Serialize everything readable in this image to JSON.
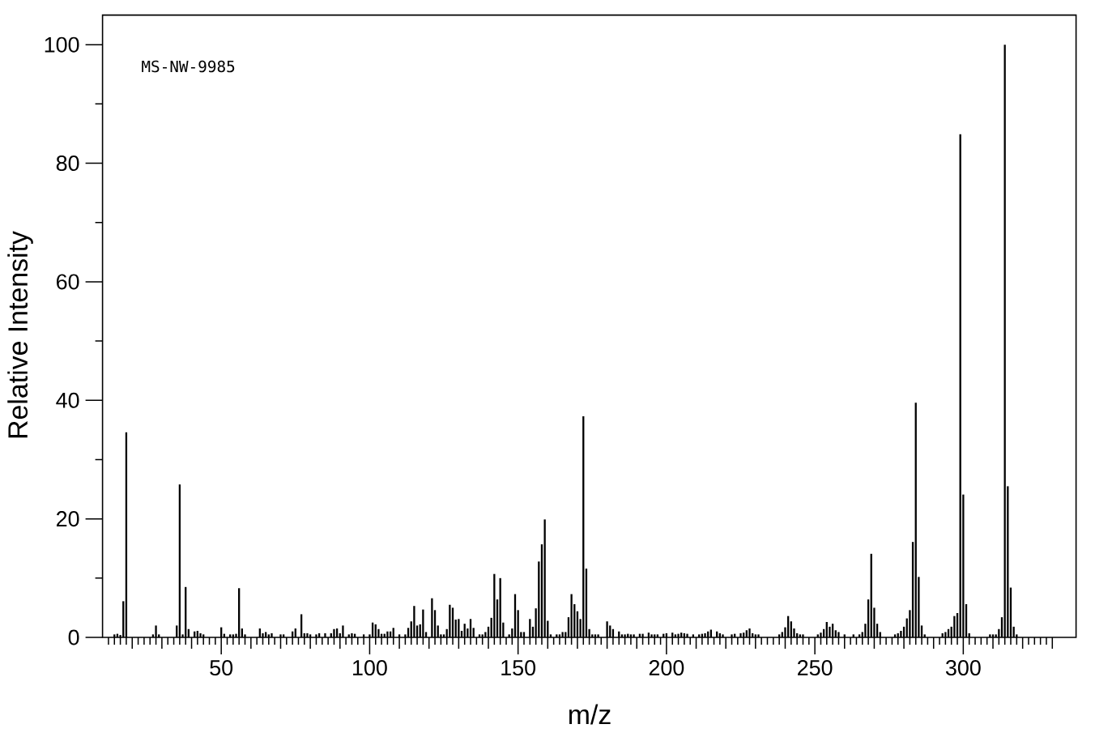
{
  "chart_data": {
    "type": "bar",
    "xlabel": "m/z",
    "ylabel": "Relative Intensity",
    "annotations": [
      "MS-NW-9985"
    ],
    "color": "#000000",
    "x": [
      14,
      15,
      16,
      17,
      18,
      27,
      28,
      29,
      35,
      36,
      37,
      38,
      39,
      41,
      42,
      43,
      44,
      50,
      51,
      53,
      54,
      55,
      56,
      57,
      58,
      63,
      64,
      65,
      66,
      67,
      70,
      71,
      74,
      75,
      77,
      78,
      79,
      80,
      82,
      83,
      85,
      87,
      88,
      89,
      90,
      91,
      93,
      94,
      95,
      98,
      100,
      101,
      102,
      103,
      104,
      105,
      106,
      107,
      108,
      110,
      112,
      113,
      114,
      115,
      116,
      117,
      118,
      119,
      121,
      122,
      123,
      124,
      125,
      126,
      127,
      128,
      129,
      130,
      131,
      132,
      133,
      134,
      135,
      137,
      138,
      139,
      140,
      141,
      142,
      143,
      144,
      145,
      147,
      148,
      149,
      150,
      151,
      152,
      154,
      155,
      156,
      157,
      158,
      159,
      160,
      161,
      163,
      164,
      165,
      166,
      167,
      168,
      169,
      170,
      171,
      172,
      173,
      174,
      175,
      176,
      177,
      180,
      181,
      182,
      184,
      185,
      186,
      187,
      188,
      189,
      191,
      192,
      194,
      195,
      196,
      197,
      199,
      200,
      202,
      203,
      204,
      205,
      206,
      207,
      209,
      211,
      212,
      213,
      214,
      215,
      217,
      218,
      219,
      222,
      223,
      225,
      226,
      227,
      228,
      229,
      230,
      231,
      238,
      239,
      240,
      241,
      242,
      243,
      244,
      245,
      246,
      251,
      252,
      253,
      254,
      255,
      256,
      257,
      258,
      260,
      263,
      265,
      266,
      267,
      268,
      269,
      270,
      271,
      272,
      277,
      278,
      279,
      280,
      281,
      282,
      283,
      284,
      285,
      286,
      287,
      293,
      294,
      295,
      296,
      297,
      298,
      299,
      300,
      301,
      302,
      309,
      310,
      311,
      312,
      313,
      314,
      315,
      316,
      317,
      318
    ],
    "values": [
      0.5,
      0.6,
      0.4,
      6.1,
      34.6,
      0.5,
      2.0,
      0.5,
      2.0,
      25.8,
      0.5,
      8.5,
      1.4,
      1.0,
      1.1,
      0.7,
      0.5,
      1.7,
      0.6,
      0.5,
      0.5,
      0.6,
      8.3,
      1.5,
      0.5,
      1.5,
      0.7,
      0.9,
      0.5,
      0.7,
      0.5,
      0.5,
      1.0,
      1.5,
      3.9,
      0.7,
      0.7,
      0.5,
      0.5,
      0.7,
      0.7,
      0.7,
      1.4,
      1.5,
      0.7,
      2.0,
      0.5,
      0.7,
      0.6,
      0.5,
      0.5,
      2.5,
      2.2,
      1.4,
      0.6,
      0.6,
      1.0,
      1.0,
      1.6,
      0.5,
      0.5,
      1.6,
      2.7,
      5.3,
      2.0,
      2.2,
      4.7,
      0.9,
      6.6,
      4.6,
      2.0,
      0.5,
      0.5,
      1.4,
      5.5,
      5.0,
      3.0,
      3.1,
      1.1,
      2.3,
      1.5,
      3.1,
      1.6,
      0.5,
      0.5,
      0.9,
      1.8,
      3.3,
      10.7,
      6.4,
      10.0,
      2.5,
      0.5,
      1.5,
      7.3,
      4.6,
      0.9,
      0.9,
      3.1,
      1.8,
      4.9,
      12.8,
      15.7,
      19.9,
      2.8,
      0.5,
      0.5,
      0.5,
      0.9,
      0.9,
      3.4,
      7.3,
      5.6,
      4.4,
      3.1,
      37.3,
      11.6,
      1.4,
      0.5,
      0.5,
      0.5,
      2.7,
      2.0,
      1.4,
      1.0,
      0.5,
      0.5,
      0.6,
      0.5,
      0.5,
      0.6,
      0.6,
      0.8,
      0.5,
      0.5,
      0.5,
      0.6,
      0.7,
      0.8,
      0.5,
      0.6,
      0.8,
      0.7,
      0.6,
      0.5,
      0.5,
      0.6,
      0.7,
      1.0,
      1.3,
      1.0,
      0.7,
      0.5,
      0.5,
      0.6,
      0.7,
      0.8,
      1.2,
      1.5,
      0.7,
      0.5,
      0.5,
      0.5,
      0.9,
      1.7,
      3.6,
      2.7,
      1.5,
      0.7,
      0.5,
      0.5,
      0.5,
      0.8,
      1.4,
      2.6,
      1.8,
      2.3,
      1.2,
      0.9,
      0.5,
      0.5,
      0.5,
      0.9,
      2.3,
      6.4,
      14.1,
      5.0,
      2.3,
      0.9,
      0.5,
      0.7,
      1.1,
      1.8,
      3.2,
      4.6,
      16.1,
      39.6,
      10.2,
      2.0,
      0.5,
      0.7,
      0.9,
      1.4,
      1.8,
      3.6,
      4.1,
      84.9,
      24.1,
      5.6,
      0.7,
      0.5,
      0.5,
      0.5,
      1.4,
      3.4,
      100,
      25.5,
      8.4,
      1.8,
      0.5
    ],
    "xlim": [
      10,
      338
    ],
    "ylim": [
      0,
      105
    ],
    "xticks": [
      {
        "value": 12,
        "label": null
      },
      {
        "value": 14,
        "label": null
      },
      {
        "value": 16,
        "label": null
      },
      {
        "value": 18,
        "label": null
      },
      {
        "value": 20,
        "label": null
      },
      {
        "value": 22,
        "label": null
      },
      {
        "value": 24,
        "label": null
      },
      {
        "value": 26,
        "label": null
      },
      {
        "value": 28,
        "label": null
      },
      {
        "value": 30,
        "label": null
      },
      {
        "value": 32,
        "label": null
      },
      {
        "value": 34,
        "label": null
      },
      {
        "value": 36,
        "label": null
      },
      {
        "value": 38,
        "label": null
      },
      {
        "value": 40,
        "label": null
      },
      {
        "value": 42,
        "label": null
      },
      {
        "value": 44,
        "label": null
      },
      {
        "value": 46,
        "label": null
      },
      {
        "value": 48,
        "label": null
      },
      50,
      {
        "value": 52,
        "label": null
      },
      {
        "value": 54,
        "label": null
      },
      {
        "value": 56,
        "label": null
      },
      {
        "value": 58,
        "label": null
      },
      {
        "value": 60,
        "label": null
      },
      {
        "value": 62,
        "label": null
      },
      {
        "value": 64,
        "label": null
      },
      {
        "value": 66,
        "label": null
      },
      {
        "value": 68,
        "label": null
      },
      {
        "value": 70,
        "label": null
      },
      {
        "value": 72,
        "label": null
      },
      {
        "value": 74,
        "label": null
      },
      {
        "value": 76,
        "label": null
      },
      {
        "value": 78,
        "label": null
      },
      {
        "value": 80,
        "label": null
      },
      {
        "value": 82,
        "label": null
      },
      {
        "value": 84,
        "label": null
      },
      {
        "value": 86,
        "label": null
      },
      {
        "value": 88,
        "label": null
      },
      {
        "value": 90,
        "label": null
      },
      {
        "value": 92,
        "label": null
      },
      {
        "value": 94,
        "label": null
      },
      {
        "value": 96,
        "label": null
      },
      {
        "value": 98,
        "label": null
      },
      100,
      {
        "value": 102,
        "label": null
      },
      {
        "value": 104,
        "label": null
      },
      {
        "value": 106,
        "label": null
      },
      {
        "value": 108,
        "label": null
      },
      {
        "value": 110,
        "label": null
      },
      {
        "value": 112,
        "label": null
      },
      {
        "value": 114,
        "label": null
      },
      {
        "value": 116,
        "label": null
      },
      {
        "value": 118,
        "label": null
      },
      {
        "value": 120,
        "label": null
      },
      {
        "value": 122,
        "label": null
      },
      {
        "value": 124,
        "label": null
      },
      {
        "value": 126,
        "label": null
      },
      {
        "value": 128,
        "label": null
      },
      {
        "value": 130,
        "label": null
      },
      {
        "value": 132,
        "label": null
      },
      {
        "value": 134,
        "label": null
      },
      {
        "value": 136,
        "label": null
      },
      {
        "value": 138,
        "label": null
      },
      {
        "value": 140,
        "label": null
      },
      {
        "value": 142,
        "label": null
      },
      {
        "value": 144,
        "label": null
      },
      {
        "value": 146,
        "label": null
      },
      {
        "value": 148,
        "label": null
      },
      150,
      {
        "value": 152,
        "label": null
      },
      {
        "value": 154,
        "label": null
      },
      {
        "value": 156,
        "label": null
      },
      {
        "value": 158,
        "label": null
      },
      {
        "value": 160,
        "label": null
      },
      {
        "value": 162,
        "label": null
      },
      {
        "value": 164,
        "label": null
      },
      {
        "value": 166,
        "label": null
      },
      {
        "value": 168,
        "label": null
      },
      {
        "value": 170,
        "label": null
      },
      {
        "value": 172,
        "label": null
      },
      {
        "value": 174,
        "label": null
      },
      {
        "value": 176,
        "label": null
      },
      {
        "value": 178,
        "label": null
      },
      {
        "value": 180,
        "label": null
      },
      {
        "value": 182,
        "label": null
      },
      {
        "value": 184,
        "label": null
      },
      {
        "value": 186,
        "label": null
      },
      {
        "value": 188,
        "label": null
      },
      {
        "value": 190,
        "label": null
      },
      {
        "value": 192,
        "label": null
      },
      {
        "value": 194,
        "label": null
      },
      {
        "value": 196,
        "label": null
      },
      {
        "value": 198,
        "label": null
      },
      200,
      {
        "value": 202,
        "label": null
      },
      {
        "value": 204,
        "label": null
      },
      {
        "value": 206,
        "label": null
      },
      {
        "value": 208,
        "label": null
      },
      {
        "value": 210,
        "label": null
      },
      {
        "value": 212,
        "label": null
      },
      {
        "value": 214,
        "label": null
      },
      {
        "value": 216,
        "label": null
      },
      {
        "value": 218,
        "label": null
      },
      {
        "value": 220,
        "label": null
      },
      {
        "value": 222,
        "label": null
      },
      {
        "value": 224,
        "label": null
      },
      {
        "value": 226,
        "label": null
      },
      {
        "value": 228,
        "label": null
      },
      {
        "value": 230,
        "label": null
      },
      {
        "value": 232,
        "label": null
      },
      {
        "value": 234,
        "label": null
      },
      {
        "value": 236,
        "label": null
      },
      {
        "value": 238,
        "label": null
      },
      {
        "value": 240,
        "label": null
      },
      {
        "value": 242,
        "label": null
      },
      {
        "value": 244,
        "label": null
      },
      {
        "value": 246,
        "label": null
      },
      {
        "value": 248,
        "label": null
      },
      250,
      {
        "value": 252,
        "label": null
      },
      {
        "value": 254,
        "label": null
      },
      {
        "value": 256,
        "label": null
      },
      {
        "value": 258,
        "label": null
      },
      {
        "value": 260,
        "label": null
      },
      {
        "value": 262,
        "label": null
      },
      {
        "value": 264,
        "label": null
      },
      {
        "value": 266,
        "label": null
      },
      {
        "value": 268,
        "label": null
      },
      {
        "value": 270,
        "label": null
      },
      {
        "value": 272,
        "label": null
      },
      {
        "value": 274,
        "label": null
      },
      {
        "value": 276,
        "label": null
      },
      {
        "value": 278,
        "label": null
      },
      {
        "value": 280,
        "label": null
      },
      {
        "value": 282,
        "label": null
      },
      {
        "value": 284,
        "label": null
      },
      {
        "value": 286,
        "label": null
      },
      {
        "value": 288,
        "label": null
      },
      {
        "value": 290,
        "label": null
      },
      {
        "value": 292,
        "label": null
      },
      {
        "value": 294,
        "label": null
      },
      {
        "value": 296,
        "label": null
      },
      {
        "value": 298,
        "label": null
      },
      300,
      {
        "value": 302,
        "label": null
      },
      {
        "value": 304,
        "label": null
      },
      {
        "value": 306,
        "label": null
      },
      {
        "value": 308,
        "label": null
      },
      {
        "value": 310,
        "label": null
      },
      {
        "value": 312,
        "label": null
      },
      {
        "value": 314,
        "label": null
      },
      {
        "value": 316,
        "label": null
      },
      {
        "value": 318,
        "label": null
      },
      {
        "value": 320,
        "label": null
      },
      {
        "value": 322,
        "label": null
      },
      {
        "value": 324,
        "label": null
      },
      {
        "value": 326,
        "label": null
      },
      {
        "value": 328,
        "label": null
      },
      {
        "value": 330,
        "label": null
      }
    ],
    "yticks": [
      0,
      {
        "value": 10,
        "label": null
      },
      20,
      {
        "value": 30,
        "label": null
      },
      40,
      {
        "value": 50,
        "label": null
      },
      60,
      {
        "value": 70,
        "label": null
      },
      80,
      {
        "value": 90,
        "label": null
      },
      100
    ]
  }
}
